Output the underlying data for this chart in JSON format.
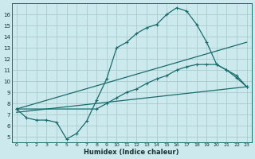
{
  "xlabel": "Humidex (Indice chaleur)",
  "bg_color": "#cce9ee",
  "grid_color": "#aacccc",
  "line_color": "#1a6b6b",
  "xlim": [
    -0.5,
    23.5
  ],
  "ylim": [
    4.5,
    17.0
  ],
  "xticks": [
    0,
    1,
    2,
    3,
    4,
    5,
    6,
    7,
    8,
    9,
    10,
    11,
    12,
    13,
    14,
    15,
    16,
    17,
    18,
    19,
    20,
    21,
    22,
    23
  ],
  "yticks": [
    5,
    6,
    7,
    8,
    9,
    10,
    11,
    12,
    13,
    14,
    15,
    16
  ],
  "curve1_x": [
    0,
    1,
    2,
    3,
    4,
    5,
    6,
    7,
    8,
    9,
    10,
    11,
    12,
    13,
    14,
    15,
    16,
    17,
    18,
    19,
    20,
    21,
    22,
    23
  ],
  "curve1_y": [
    7.5,
    6.7,
    6.5,
    6.5,
    6.3,
    4.8,
    5.3,
    6.4,
    8.3,
    10.2,
    13.0,
    13.5,
    14.3,
    14.8,
    15.1,
    16.0,
    16.6,
    16.3,
    15.1,
    13.5,
    11.5,
    11.0,
    10.3,
    9.5
  ],
  "curve2_x": [
    0,
    8,
    9,
    10,
    11,
    12,
    13,
    14,
    15,
    16,
    17,
    18,
    19,
    20,
    21,
    22,
    23
  ],
  "curve2_y": [
    7.5,
    7.5,
    8.0,
    8.5,
    9.0,
    9.3,
    9.8,
    10.2,
    10.5,
    11.0,
    11.3,
    11.5,
    11.5,
    11.5,
    11.0,
    10.5,
    9.5
  ],
  "line1_x": [
    0,
    23
  ],
  "line1_y": [
    7.2,
    9.5
  ],
  "line2_x": [
    0,
    23
  ],
  "line2_y": [
    7.5,
    13.5
  ]
}
